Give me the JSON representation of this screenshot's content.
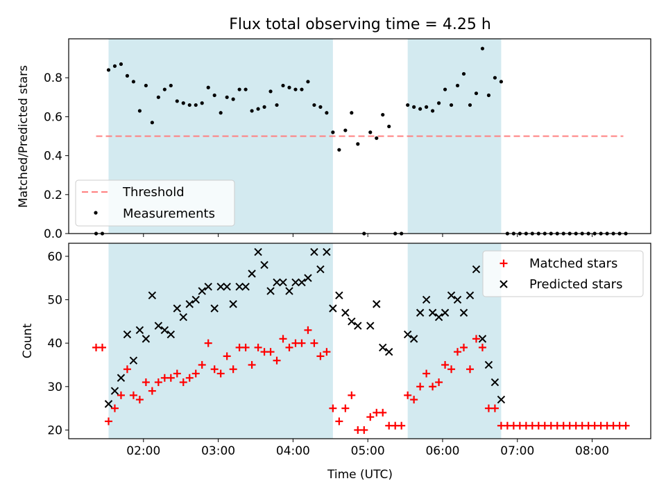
{
  "chart_data": [
    {
      "type": "scatter",
      "title": "Flux total observing time = 4.25 h",
      "xlabel": "",
      "ylabel": "Matched/Predicted stars",
      "ylim": [
        0,
        1.0
      ],
      "yticks": [
        0.0,
        0.2,
        0.4,
        0.6,
        0.8
      ],
      "ytick_labels": [
        "0.0",
        "0.2",
        "0.4",
        "0.6",
        "0.8"
      ],
      "grid": false,
      "legend_position": "lower-left",
      "shaded_intervals": [
        [
          "01:32",
          "04:32"
        ],
        [
          "05:32",
          "06:47"
        ]
      ],
      "threshold": {
        "name": "Threshold",
        "y": 0.5,
        "x_start": "01:22",
        "x_end": "08:25",
        "color": "#ff7f7f",
        "style": "dashed"
      },
      "series": [
        {
          "name": "Measurements",
          "color": "#000000",
          "marker": "dot",
          "x": [
            "01:22",
            "01:27",
            "01:32",
            "01:37",
            "01:42",
            "01:47",
            "01:52",
            "01:57",
            "02:02",
            "02:07",
            "02:12",
            "02:17",
            "02:22",
            "02:27",
            "02:32",
            "02:37",
            "02:42",
            "02:47",
            "02:52",
            "02:57",
            "03:02",
            "03:07",
            "03:12",
            "03:17",
            "03:22",
            "03:27",
            "03:32",
            "03:37",
            "03:42",
            "03:47",
            "03:52",
            "03:57",
            "04:02",
            "04:07",
            "04:12",
            "04:17",
            "04:22",
            "04:27",
            "04:32",
            "04:37",
            "04:42",
            "04:47",
            "04:52",
            "04:57",
            "05:02",
            "05:07",
            "05:12",
            "05:17",
            "05:22",
            "05:27",
            "05:32",
            "05:37",
            "05:42",
            "05:47",
            "05:52",
            "05:57",
            "06:02",
            "06:07",
            "06:12",
            "06:17",
            "06:22",
            "06:27",
            "06:32",
            "06:37",
            "06:42",
            "06:47",
            "06:52",
            "06:57",
            "07:02",
            "07:07",
            "07:12",
            "07:17",
            "07:22",
            "07:27",
            "07:32",
            "07:37",
            "07:42",
            "07:47",
            "07:52",
            "07:57",
            "08:02",
            "08:07",
            "08:12",
            "08:17",
            "08:22",
            "08:27"
          ],
          "y": [
            0,
            0,
            0.84,
            0.86,
            0.87,
            0.81,
            0.78,
            0.63,
            0.76,
            0.57,
            0.7,
            0.74,
            0.76,
            0.68,
            0.67,
            0.66,
            0.66,
            0.67,
            0.75,
            0.71,
            0.62,
            0.7,
            0.69,
            0.74,
            0.74,
            0.63,
            0.64,
            0.65,
            0.73,
            0.66,
            0.76,
            0.75,
            0.74,
            0.74,
            0.78,
            0.66,
            0.65,
            0.62,
            0.52,
            0.43,
            0.53,
            0.62,
            0.46,
            0,
            0.52,
            0.49,
            0.61,
            0.55,
            0,
            0,
            0.66,
            0.65,
            0.64,
            0.65,
            0.63,
            0.67,
            0.74,
            0.66,
            0.76,
            0.82,
            0.66,
            0.72,
            0.95,
            0.71,
            0.8,
            0.78,
            0,
            0,
            0,
            0,
            0,
            0,
            0,
            0,
            0,
            0,
            0,
            0,
            0,
            0,
            0,
            0,
            0,
            0,
            0,
            0
          ]
        }
      ]
    },
    {
      "type": "scatter",
      "title": "",
      "xlabel": "Time (UTC)",
      "ylabel": "Count",
      "ylim": [
        18,
        63
      ],
      "yticks": [
        20,
        30,
        40,
        50,
        60
      ],
      "ytick_labels": [
        "20",
        "30",
        "40",
        "50",
        "60"
      ],
      "xticks": [
        "02:00",
        "03:00",
        "04:00",
        "05:00",
        "06:00",
        "07:00",
        "08:00"
      ],
      "grid": false,
      "legend_position": "top-right",
      "shaded_intervals": [
        [
          "01:32",
          "04:32"
        ],
        [
          "05:32",
          "06:47"
        ]
      ],
      "series": [
        {
          "name": "Matched stars",
          "color": "#ff0000",
          "marker": "plus",
          "x": [
            "01:22",
            "01:27",
            "01:32",
            "01:37",
            "01:42",
            "01:47",
            "01:52",
            "01:57",
            "02:02",
            "02:07",
            "02:12",
            "02:17",
            "02:22",
            "02:27",
            "02:32",
            "02:37",
            "02:42",
            "02:47",
            "02:52",
            "02:57",
            "03:02",
            "03:07",
            "03:12",
            "03:17",
            "03:22",
            "03:27",
            "03:32",
            "03:37",
            "03:42",
            "03:47",
            "03:52",
            "03:57",
            "04:02",
            "04:07",
            "04:12",
            "04:17",
            "04:22",
            "04:27",
            "04:32",
            "04:37",
            "04:42",
            "04:47",
            "04:52",
            "04:57",
            "05:02",
            "05:07",
            "05:12",
            "05:17",
            "05:22",
            "05:27",
            "05:32",
            "05:37",
            "05:42",
            "05:47",
            "05:52",
            "05:57",
            "06:02",
            "06:07",
            "06:12",
            "06:17",
            "06:22",
            "06:27",
            "06:32",
            "06:37",
            "06:42",
            "06:47",
            "06:52",
            "06:57",
            "07:02",
            "07:07",
            "07:12",
            "07:17",
            "07:22",
            "07:27",
            "07:32",
            "07:37",
            "07:42",
            "07:47",
            "07:52",
            "07:57",
            "08:02",
            "08:07",
            "08:12",
            "08:17",
            "08:22",
            "08:27"
          ],
          "y": [
            39,
            39,
            22,
            25,
            28,
            34,
            28,
            27,
            31,
            29,
            31,
            32,
            32,
            33,
            31,
            32,
            33,
            35,
            40,
            34,
            33,
            37,
            34,
            39,
            39,
            35,
            39,
            38,
            38,
            36,
            41,
            39,
            40,
            40,
            43,
            40,
            37,
            38,
            25,
            22,
            25,
            28,
            20,
            20,
            23,
            24,
            24,
            21,
            21,
            21,
            28,
            27,
            30,
            33,
            30,
            31,
            35,
            34,
            38,
            39,
            34,
            41,
            39,
            25,
            25,
            21,
            21,
            21,
            21,
            21,
            21,
            21,
            21,
            21,
            21,
            21,
            21,
            21,
            21,
            21,
            21,
            21,
            21,
            21,
            21,
            21
          ]
        },
        {
          "name": "Predicted stars",
          "color": "#000000",
          "marker": "x",
          "x": [
            "01:32",
            "01:37",
            "01:42",
            "01:47",
            "01:52",
            "01:57",
            "02:02",
            "02:07",
            "02:12",
            "02:17",
            "02:22",
            "02:27",
            "02:32",
            "02:37",
            "02:42",
            "02:47",
            "02:52",
            "02:57",
            "03:02",
            "03:07",
            "03:12",
            "03:17",
            "03:22",
            "03:27",
            "03:32",
            "03:37",
            "03:42",
            "03:47",
            "03:52",
            "03:57",
            "04:02",
            "04:07",
            "04:12",
            "04:17",
            "04:22",
            "04:27",
            "04:32",
            "04:37",
            "04:42",
            "04:47",
            "04:52",
            "05:02",
            "05:07",
            "05:12",
            "05:17",
            "05:32",
            "05:37",
            "05:42",
            "05:47",
            "05:52",
            "05:57",
            "06:02",
            "06:07",
            "06:12",
            "06:17",
            "06:22",
            "06:27",
            "06:32",
            "06:37",
            "06:42",
            "06:47"
          ],
          "y": [
            26,
            29,
            32,
            42,
            36,
            43,
            41,
            51,
            44,
            43,
            42,
            48,
            46,
            49,
            50,
            52,
            53,
            48,
            53,
            53,
            49,
            53,
            53,
            56,
            61,
            58,
            52,
            54,
            54,
            52,
            54,
            54,
            55,
            61,
            57,
            61,
            48,
            51,
            47,
            45,
            44,
            44,
            49,
            39,
            38,
            42,
            41,
            47,
            50,
            47,
            46,
            47,
            51,
            50,
            47,
            51,
            57,
            41,
            35,
            31,
            27
          ]
        }
      ]
    }
  ]
}
